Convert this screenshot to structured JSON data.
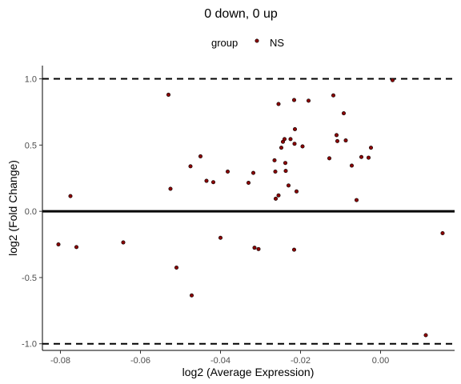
{
  "chart_data": {
    "type": "scatter",
    "title": "0 down, 0 up",
    "xlabel": "log2 (Average Expression)",
    "ylabel": "log2 (Fold Change)",
    "xlim": [
      -0.0845,
      0.0185
    ],
    "ylim": [
      -1.05,
      1.1
    ],
    "x_ticks": [
      -0.08,
      -0.06,
      -0.04,
      -0.02,
      0.0
    ],
    "x_tick_labels": [
      "-0.08",
      "-0.06",
      "-0.04",
      "-0.02",
      "0.00"
    ],
    "y_ticks": [
      -1.0,
      -0.5,
      0.0,
      0.5,
      1.0
    ],
    "y_tick_labels": [
      "-1.0",
      "-0.5",
      "0.0",
      "0.5",
      "1.0"
    ],
    "hlines": {
      "threshold": [
        -1.0,
        1.0
      ],
      "zero": 0.0
    },
    "grid": false,
    "legend": {
      "title": "group",
      "position": "top",
      "entries": [
        {
          "label": "NS",
          "color": "#8B0000"
        }
      ]
    },
    "series": [
      {
        "name": "NS",
        "color": "#8B0000",
        "points": [
          [
            -0.0775,
            0.115
          ],
          [
            -0.0805,
            -0.25
          ],
          [
            -0.076,
            -0.27
          ],
          [
            -0.0643,
            -0.235
          ],
          [
            -0.053,
            0.88
          ],
          [
            -0.0525,
            0.17
          ],
          [
            -0.051,
            -0.425
          ],
          [
            -0.0475,
            0.34
          ],
          [
            -0.0472,
            -0.635
          ],
          [
            -0.045,
            0.415
          ],
          [
            -0.0435,
            0.23
          ],
          [
            -0.0418,
            0.22
          ],
          [
            -0.04,
            -0.2
          ],
          [
            -0.0382,
            0.3
          ],
          [
            -0.033,
            0.215
          ],
          [
            -0.0318,
            0.29
          ],
          [
            -0.0315,
            -0.275
          ],
          [
            -0.0305,
            -0.285
          ],
          [
            -0.0265,
            0.385
          ],
          [
            -0.0263,
            0.3
          ],
          [
            -0.0262,
            0.095
          ],
          [
            -0.0255,
            0.81
          ],
          [
            -0.0255,
            0.12
          ],
          [
            -0.0248,
            0.48
          ],
          [
            -0.0244,
            0.525
          ],
          [
            -0.024,
            0.545
          ],
          [
            -0.0238,
            0.365
          ],
          [
            -0.0237,
            0.305
          ],
          [
            -0.023,
            0.195
          ],
          [
            -0.0225,
            0.545
          ],
          [
            -0.0216,
            0.84
          ],
          [
            -0.0214,
            0.62
          ],
          [
            -0.021,
            0.15
          ],
          [
            -0.0215,
            0.51
          ],
          [
            -0.0216,
            -0.29
          ],
          [
            -0.0195,
            0.49
          ],
          [
            -0.018,
            0.835
          ],
          [
            -0.0128,
            0.4
          ],
          [
            -0.0118,
            0.875
          ],
          [
            -0.011,
            0.575
          ],
          [
            -0.0108,
            0.53
          ],
          [
            -0.0092,
            0.74
          ],
          [
            -0.0087,
            0.535
          ],
          [
            -0.0072,
            0.345
          ],
          [
            -0.006,
            0.085
          ],
          [
            -0.0048,
            0.41
          ],
          [
            -0.003,
            0.405
          ],
          [
            -0.0024,
            0.48
          ],
          [
            0.003,
            0.99
          ],
          [
            0.0113,
            -0.935
          ],
          [
            0.0155,
            -0.165
          ]
        ]
      }
    ]
  }
}
